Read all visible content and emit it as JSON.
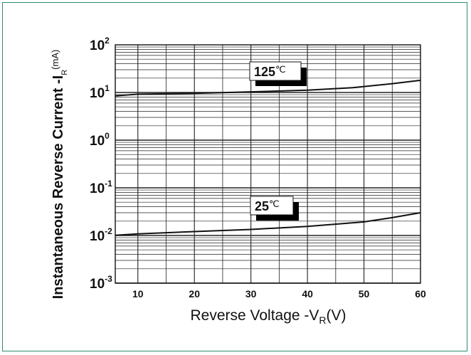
{
  "chart_data": {
    "type": "line",
    "title": "",
    "xlabel": "Reverse  Voltage -V",
    "xlabel_sub": "R",
    "xlabel_unit": "(V)",
    "ylabel": "Instantaneous Reverse Current -I",
    "ylabel_sub": "R",
    "ylabel_unit": "(mA)",
    "x_scale": "linear",
    "y_scale": "log",
    "xlim": [
      6,
      60
    ],
    "ylim": [
      0.001,
      100
    ],
    "grid": true,
    "x_ticks": [
      {
        "value": 10,
        "label": "10"
      },
      {
        "value": 20,
        "label": "20"
      },
      {
        "value": 30,
        "label": "30"
      },
      {
        "value": 40,
        "label": "40"
      },
      {
        "value": 50,
        "label": "50"
      },
      {
        "value": 60,
        "label": "60"
      }
    ],
    "y_ticks": [
      {
        "value": 100,
        "base": "10",
        "exp": "2"
      },
      {
        "value": 10,
        "base": "10",
        "exp": "1"
      },
      {
        "value": 1,
        "base": "10",
        "exp": "0"
      },
      {
        "value": 0.1,
        "base": "10",
        "exp": "-1"
      },
      {
        "value": 0.01,
        "base": "10",
        "exp": "-2"
      },
      {
        "value": 0.001,
        "base": "10",
        "exp": "-3"
      }
    ],
    "series": [
      {
        "name": "125℃",
        "label_main": "125",
        "label_unit": "℃",
        "x": [
          6,
          10,
          20,
          30,
          40,
          48,
          55,
          60
        ],
        "y": [
          8.5,
          9.2,
          9.6,
          10.3,
          11.2,
          12.6,
          15.3,
          18.0
        ]
      },
      {
        "name": "25℃",
        "label_main": "25",
        "label_unit": "℃",
        "x": [
          6,
          10,
          20,
          30,
          40,
          50,
          55,
          60
        ],
        "y": [
          0.0101,
          0.0108,
          0.0121,
          0.0134,
          0.0155,
          0.0193,
          0.0237,
          0.03
        ]
      }
    ]
  }
}
